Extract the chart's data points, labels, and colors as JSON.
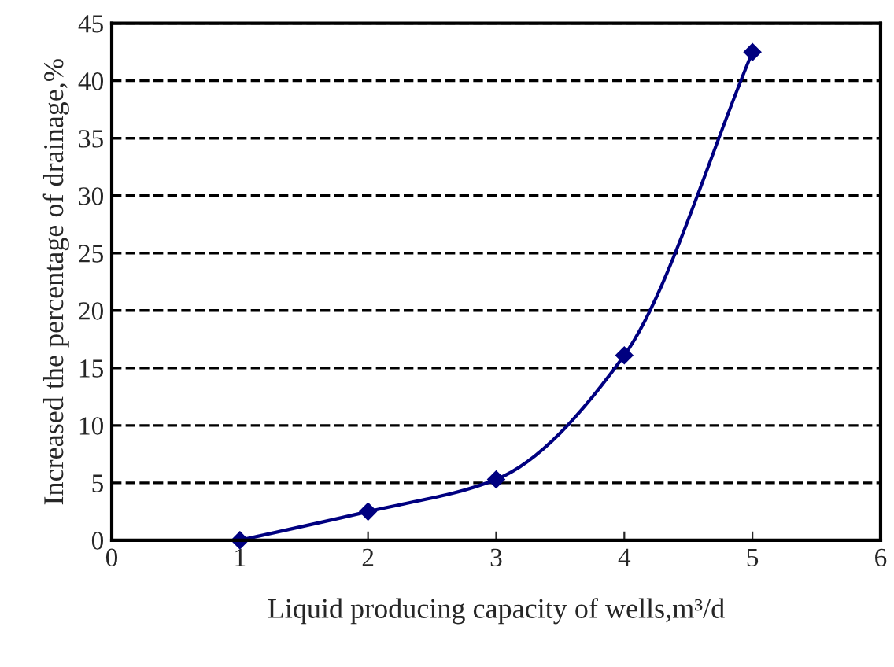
{
  "chart_data": {
    "type": "line",
    "xlabel": "Liquid producing capacity of wells,m³/d",
    "ylabel": "Increased the percentage of drainage,%",
    "x": [
      1,
      2,
      3,
      4,
      5
    ],
    "series": [
      {
        "color": "#000080",
        "values": [
          0,
          2.5,
          5.3,
          16.1,
          42.5
        ]
      }
    ],
    "xlim": [
      0,
      6
    ],
    "xticks": [
      0,
      1,
      2,
      3,
      4,
      5,
      6
    ],
    "ylim": [
      0,
      45
    ],
    "yticks": [
      0,
      5,
      10,
      15,
      20,
      25,
      30,
      35,
      40,
      45
    ],
    "grid": "y",
    "marker": "diamond",
    "line_style": "solid"
  }
}
